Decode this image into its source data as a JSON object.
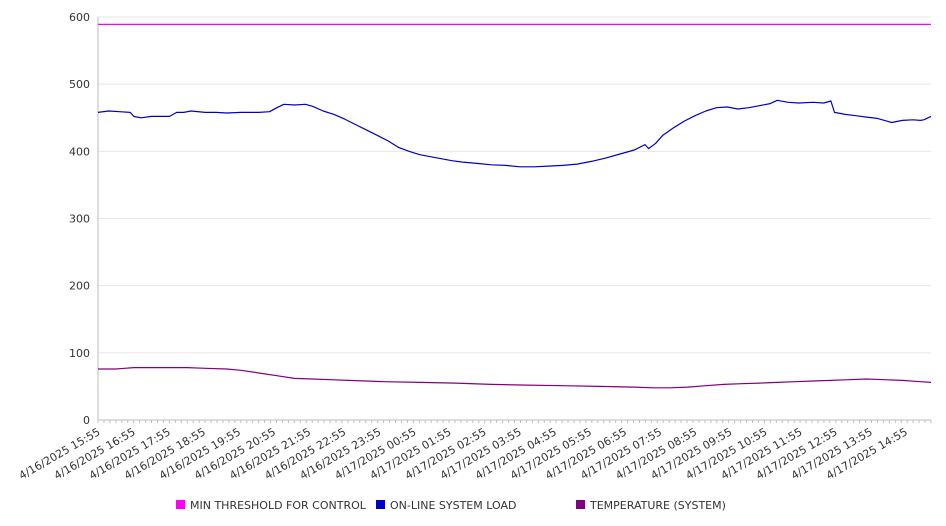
{
  "chart_data": {
    "type": "line",
    "title": "",
    "xlabel": "",
    "ylabel": "",
    "ylim": [
      0,
      600
    ],
    "yticks": [
      0,
      100,
      200,
      300,
      400,
      500,
      600
    ],
    "grid": true,
    "legend_placement": "bottom",
    "x_tick_labels": [
      "4/16/2025 15:55",
      "4/16/2025 16:55",
      "4/16/2025 17:55",
      "4/16/2025 18:55",
      "4/16/2025 19:55",
      "4/16/2025 20:55",
      "4/16/2025 21:55",
      "4/16/2025 22:55",
      "4/16/2025 23:55",
      "4/17/2025 00:55",
      "4/17/2025 01:55",
      "4/17/2025 02:55",
      "4/17/2025 03:55",
      "4/17/2025 04:55",
      "4/17/2025 05:55",
      "4/17/2025 06:55",
      "4/17/2025 07:55",
      "4/17/2025 08:55",
      "4/17/2025 09:55",
      "4/17/2025 10:55",
      "4/17/2025 11:55",
      "4/17/2025 12:55",
      "4/17/2025 13:55",
      "4/17/2025 14:55"
    ],
    "x_range_hours": [
      0,
      23.3
    ],
    "series": [
      {
        "name": "MIN THRESHOLD FOR CONTROL",
        "color": "#ff00ff",
        "points": [
          [
            0,
            589
          ],
          [
            23.3,
            589
          ]
        ]
      },
      {
        "name": "ON-LINE SYSTEM LOAD",
        "color": "#0000cc",
        "points": [
          [
            0,
            458
          ],
          [
            0.3,
            460
          ],
          [
            0.6,
            459
          ],
          [
            0.9,
            458
          ],
          [
            1.0,
            452
          ],
          [
            1.2,
            450
          ],
          [
            1.5,
            452
          ],
          [
            1.8,
            452
          ],
          [
            2.0,
            452
          ],
          [
            2.2,
            458
          ],
          [
            2.4,
            458
          ],
          [
            2.6,
            460
          ],
          [
            3.0,
            458
          ],
          [
            3.3,
            458
          ],
          [
            3.6,
            457
          ],
          [
            4.0,
            458
          ],
          [
            4.5,
            458
          ],
          [
            4.8,
            459
          ],
          [
            5.0,
            465
          ],
          [
            5.2,
            470
          ],
          [
            5.5,
            469
          ],
          [
            5.8,
            470
          ],
          [
            6.0,
            467
          ],
          [
            6.3,
            460
          ],
          [
            6.6,
            455
          ],
          [
            6.9,
            448
          ],
          [
            7.2,
            440
          ],
          [
            7.5,
            432
          ],
          [
            7.8,
            424
          ],
          [
            8.1,
            416
          ],
          [
            8.4,
            406
          ],
          [
            8.7,
            400
          ],
          [
            9.0,
            395
          ],
          [
            9.3,
            392
          ],
          [
            9.6,
            389
          ],
          [
            9.9,
            386
          ],
          [
            10.2,
            384
          ],
          [
            10.6,
            382
          ],
          [
            11.0,
            380
          ],
          [
            11.4,
            379
          ],
          [
            11.8,
            377
          ],
          [
            12.2,
            377
          ],
          [
            12.6,
            378
          ],
          [
            13.0,
            379
          ],
          [
            13.4,
            381
          ],
          [
            13.8,
            385
          ],
          [
            14.2,
            390
          ],
          [
            14.6,
            396
          ],
          [
            15.0,
            402
          ],
          [
            15.3,
            410
          ],
          [
            15.4,
            404
          ],
          [
            15.6,
            412
          ],
          [
            15.8,
            424
          ],
          [
            16.1,
            435
          ],
          [
            16.4,
            445
          ],
          [
            16.7,
            453
          ],
          [
            17.0,
            460
          ],
          [
            17.3,
            465
          ],
          [
            17.6,
            466
          ],
          [
            17.9,
            463
          ],
          [
            18.2,
            465
          ],
          [
            18.5,
            468
          ],
          [
            18.8,
            471
          ],
          [
            19.0,
            476
          ],
          [
            19.3,
            473
          ],
          [
            19.6,
            472
          ],
          [
            20.0,
            473
          ],
          [
            20.3,
            472
          ],
          [
            20.5,
            475
          ],
          [
            20.6,
            458
          ],
          [
            20.9,
            455
          ],
          [
            21.2,
            453
          ],
          [
            21.5,
            451
          ],
          [
            21.8,
            449
          ],
          [
            22.0,
            446
          ],
          [
            22.2,
            443
          ],
          [
            22.5,
            446
          ],
          [
            22.8,
            447
          ],
          [
            23.0,
            446
          ],
          [
            23.1,
            447
          ],
          [
            23.3,
            452
          ]
        ]
      },
      {
        "name": "TEMPERATURE (SYSTEM)",
        "color": "#800080",
        "points": [
          [
            0,
            76
          ],
          [
            0.5,
            76
          ],
          [
            1.0,
            78
          ],
          [
            2.0,
            78
          ],
          [
            2.5,
            78
          ],
          [
            3.0,
            77
          ],
          [
            3.6,
            76
          ],
          [
            4.0,
            74
          ],
          [
            4.5,
            70
          ],
          [
            5.0,
            66
          ],
          [
            5.5,
            62
          ],
          [
            6.0,
            61
          ],
          [
            6.5,
            60
          ],
          [
            7.0,
            59
          ],
          [
            7.5,
            58
          ],
          [
            8.0,
            57
          ],
          [
            9.0,
            56
          ],
          [
            10.0,
            55
          ],
          [
            11.0,
            53
          ],
          [
            12.0,
            52
          ],
          [
            13.0,
            51
          ],
          [
            14.0,
            50
          ],
          [
            15.0,
            49
          ],
          [
            15.5,
            48
          ],
          [
            16.0,
            48
          ],
          [
            16.5,
            49
          ],
          [
            17.0,
            51
          ],
          [
            17.5,
            53
          ],
          [
            18.0,
            54
          ],
          [
            18.5,
            55
          ],
          [
            19.0,
            56
          ],
          [
            19.5,
            57
          ],
          [
            20.0,
            58
          ],
          [
            20.5,
            59
          ],
          [
            21.0,
            60
          ],
          [
            21.5,
            61
          ],
          [
            22.0,
            60
          ],
          [
            22.5,
            59
          ],
          [
            23.0,
            57
          ],
          [
            23.3,
            56
          ]
        ]
      }
    ]
  },
  "legend": {
    "items": [
      {
        "label": "MIN THRESHOLD FOR CONTROL",
        "color": "#ff00ff"
      },
      {
        "label": "ON-LINE SYSTEM LOAD",
        "color": "#0000cc"
      },
      {
        "label": "TEMPERATURE (SYSTEM)",
        "color": "#800080"
      }
    ]
  }
}
